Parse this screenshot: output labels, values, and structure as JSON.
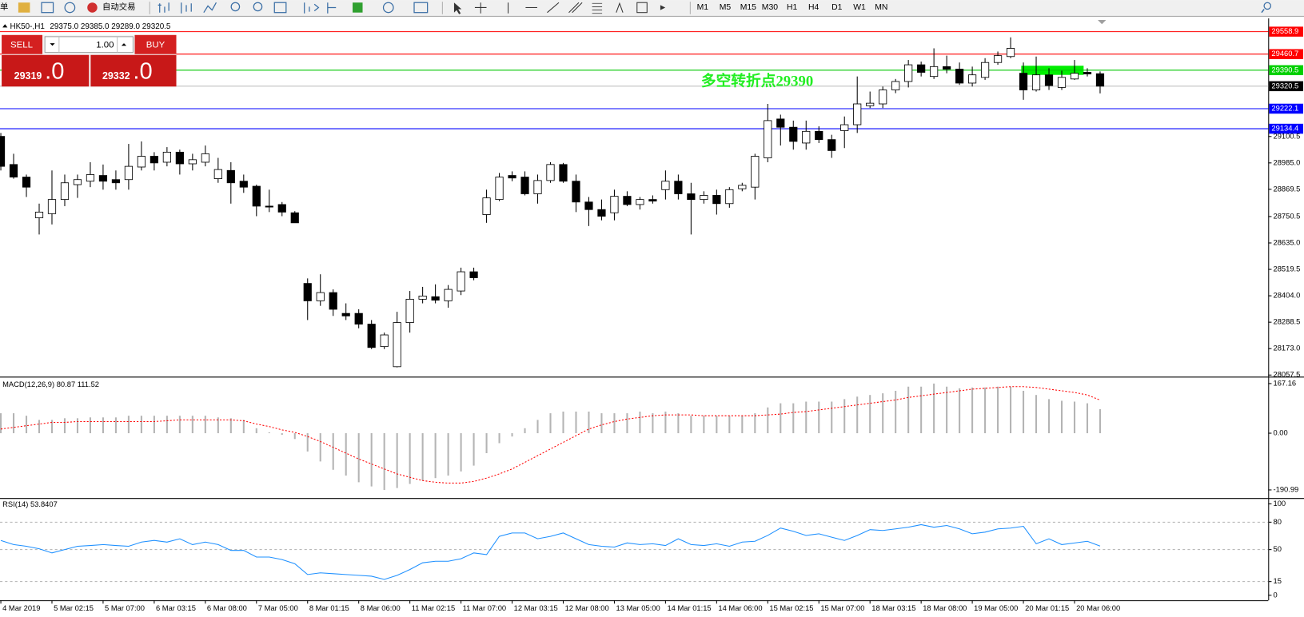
{
  "toolbar": {
    "menu": "单",
    "autotrade": "自动交易",
    "timeframes": [
      "M1",
      "M5",
      "M15",
      "M30",
      "H1",
      "H4",
      "D1",
      "W1",
      "MN"
    ]
  },
  "trade_panel": {
    "sell": "SELL",
    "buy": "BUY",
    "lots": "1.00",
    "bid": "29319",
    "bid_fraction": ".0",
    "ask": "29332",
    "ask_fraction": ".0"
  },
  "chart_data": [
    {
      "type": "candlestick",
      "title": "HK50-,H1",
      "subtitle": "29375.0 29385.0 29289.0 29320.5",
      "categories": [
        "4 Mar 2019",
        null,
        null,
        null,
        "5 Mar 02:15",
        null,
        null,
        null,
        "5 Mar 07:00",
        null,
        null,
        null,
        "6 Mar 03:15",
        null,
        null,
        null,
        "6 Mar 08:00",
        null,
        null,
        null,
        "7 Mar 05:00",
        null,
        null,
        null,
        "8 Mar 01:15",
        null,
        null,
        null,
        "8 Mar 06:00",
        null,
        null,
        null,
        "11 Mar 02:15",
        null,
        null,
        null,
        "11 Mar 07:00",
        null,
        null,
        null,
        "12 Mar 03:15",
        null,
        null,
        null,
        "12 Mar 08:00",
        null,
        null,
        null,
        "13 Mar 05:00",
        null,
        null,
        null,
        "14 Mar 01:15",
        null,
        null,
        null,
        "14 Mar 06:00",
        null,
        null,
        null,
        "15 Mar 02:15",
        null,
        null,
        null,
        "15 Mar 07:00",
        null,
        null,
        null,
        "18 Mar 03:15",
        null,
        null,
        null,
        "18 Mar 08:00",
        null,
        null,
        null,
        "19 Mar 05:00",
        null,
        null,
        null,
        "20 Mar 01:15",
        null,
        null,
        null,
        "20 Mar 06:00",
        null,
        null
      ],
      "open": [
        29101,
        28978,
        28923,
        28745,
        28763,
        28825,
        28890,
        28905,
        28930,
        28912,
        28912,
        28967,
        29014,
        28988,
        29032,
        28981,
        28988,
        28916,
        28952,
        28905,
        28883,
        28796,
        28803,
        28767,
        28458,
        28382,
        28418,
        28327,
        28327,
        28280,
        28182,
        28094,
        28287,
        28389,
        28400,
        28382,
        28425,
        28509,
        28759,
        28825,
        28930,
        28923,
        28850,
        28908,
        28978,
        28905,
        28814,
        28781,
        28767,
        28839,
        28803,
        28825,
        28868,
        28905,
        28850,
        28825,
        28843,
        28807,
        28872,
        28879,
        29007,
        29177,
        29141,
        29072,
        29123,
        29087,
        29126,
        29152,
        29235,
        29243,
        29304,
        29341,
        29414,
        29363,
        29406,
        29395,
        29334,
        29359,
        29424,
        29450,
        29377,
        29304,
        29370,
        29315,
        29352,
        29381,
        29375
      ],
      "high": [
        29116,
        29025,
        28934,
        28807,
        28952,
        28934,
        28934,
        28988,
        28978,
        28952,
        29068,
        29079,
        29032,
        29054,
        29043,
        29025,
        29061,
        29007,
        28988,
        28934,
        28890,
        28868,
        28814,
        28774,
        28480,
        28498,
        28432,
        28371,
        28345,
        28298,
        28243,
        28334,
        28425,
        28443,
        28454,
        28451,
        28527,
        28527,
        28868,
        28941,
        28948,
        28948,
        28934,
        28988,
        28985,
        28934,
        28836,
        28825,
        28868,
        28861,
        28836,
        28843,
        28952,
        28934,
        28898,
        28861,
        28868,
        28879,
        28898,
        29025,
        29243,
        29196,
        29170,
        29170,
        29145,
        29108,
        29188,
        29363,
        29297,
        29319,
        29352,
        29435,
        29428,
        29486,
        29454,
        29424,
        29406,
        29443,
        29472,
        29534,
        29424,
        29450,
        29399,
        29388,
        29435,
        29399,
        29385
      ],
      "low": [
        28952,
        28916,
        28836,
        28672,
        28716,
        28796,
        28832,
        28879,
        28868,
        28868,
        28868,
        28952,
        28952,
        28970,
        28934,
        28952,
        28970,
        28898,
        28807,
        28854,
        28752,
        28770,
        28752,
        28723,
        28298,
        28360,
        28316,
        28298,
        28262,
        28171,
        28171,
        28091,
        28243,
        28371,
        28371,
        28352,
        28407,
        28472,
        28723,
        28818,
        28905,
        28843,
        28807,
        28898,
        28898,
        28770,
        28709,
        28734,
        28734,
        28796,
        28781,
        28807,
        28825,
        28825,
        28672,
        28807,
        28759,
        28789,
        28861,
        28825,
        28988,
        29061,
        29043,
        29043,
        29072,
        29007,
        29050,
        29116,
        29225,
        29225,
        29290,
        29315,
        29363,
        29352,
        29377,
        29326,
        29319,
        29348,
        29414,
        29443,
        29261,
        29297,
        29304,
        29304,
        29348,
        29363,
        29289
      ],
      "close": [
        28970,
        28923,
        28879,
        28770,
        28825,
        28898,
        28912,
        28934,
        28905,
        28898,
        28970,
        29014,
        28985,
        29032,
        28981,
        28999,
        29025,
        28956,
        28898,
        28879,
        28796,
        28792,
        28770,
        28723,
        28382,
        28418,
        28345,
        28316,
        28280,
        28178,
        28233,
        28287,
        28389,
        28403,
        28385,
        28432,
        28509,
        28483,
        28832,
        28923,
        28919,
        28850,
        28908,
        28978,
        28905,
        28814,
        28781,
        28752,
        28839,
        28803,
        28825,
        28818,
        28905,
        28850,
        28825,
        28843,
        28807,
        28868,
        28887,
        29014,
        29170,
        29141,
        29079,
        29123,
        29087,
        29039,
        29152,
        29243,
        29246,
        29304,
        29341,
        29414,
        29381,
        29406,
        29395,
        29334,
        29370,
        29424,
        29454,
        29486,
        29304,
        29370,
        29323,
        29359,
        29377,
        29374,
        29320.5
      ],
      "up_color": "#ffffff",
      "down_color": "#000000",
      "ylim": [
        28054,
        29617
      ],
      "yticks": [
        28057.5,
        {
          "value": 28173,
          "label": "28173.0"
        },
        28288.5,
        {
          "value": 28404,
          "label": "28404.0"
        },
        28519.5,
        {
          "value": 28635,
          "label": "28635.0"
        },
        28750.5,
        28869.5,
        {
          "value": 28985,
          "label": "28985.0"
        },
        29100.5
      ],
      "levels": [
        {
          "value": 29558.9,
          "color": "#ff0000",
          "label_color": "#ff0000"
        },
        {
          "value": 29460.7,
          "color": "#ff0000",
          "label_color": "#ff0000"
        },
        {
          "value": 29390.5,
          "color": "#00c800",
          "label_color": "#00d000"
        },
        {
          "value": 29320.5,
          "color": "#c0c0c0",
          "label_color": "#000000"
        },
        {
          "value": 29222.1,
          "color": "#0000ff",
          "label_color": "#0000ff"
        },
        {
          "value": 29134.4,
          "color": "#0000ff",
          "label_color": "#0000ff"
        }
      ],
      "annotation": {
        "text": "多空转折点29390",
        "color": "#22ee22"
      }
    },
    {
      "type": "macd",
      "title": "MACD(12,26,9) 80.87 111.52",
      "color": "#b4b4b4",
      "signal_color": "#ff0000",
      "values": [
        67.2,
        67.2,
        58.8,
        44.8,
        44.8,
        50.4,
        50.4,
        53.2,
        53.2,
        53.2,
        58.8,
        58.8,
        58.8,
        58.8,
        58.8,
        58.8,
        58.8,
        53.2,
        50.4,
        44.8,
        16.8,
        2.8,
        -5.6,
        -19.6,
        -61.6,
        -95.2,
        -123.2,
        -142.8,
        -165.2,
        -179.2,
        -190.99,
        -184.8,
        -170.8,
        -159.6,
        -151.2,
        -142.8,
        -128.8,
        -109.2,
        -67.2,
        -33.6,
        -11.2,
        16.8,
        44.8,
        67.2,
        72.8,
        72.8,
        72.8,
        67.2,
        67.2,
        67.2,
        72.8,
        67.2,
        72.8,
        67.2,
        58.8,
        58.8,
        58.8,
        58.8,
        58.8,
        67.2,
        86.8,
        100.8,
        100.8,
        106.4,
        106.4,
        106.4,
        114.8,
        123.2,
        128.8,
        134.4,
        142.8,
        156.8,
        156.8,
        167.16,
        156.8,
        151.2,
        154,
        154,
        156.8,
        156.8,
        142.8,
        128.8,
        114.8,
        109.2,
        106.4,
        100.8,
        80.87
      ],
      "signal": [
        14,
        19.6,
        25.2,
        30.8,
        36.4,
        36.4,
        39.2,
        39.2,
        39.2,
        39.2,
        39.2,
        39.2,
        39.2,
        42,
        44.8,
        44.8,
        44.8,
        44.8,
        44.8,
        42,
        30.8,
        22.4,
        11.2,
        2.8,
        -11.2,
        -28,
        -47.6,
        -67.2,
        -86.8,
        -103.6,
        -120.4,
        -137.2,
        -148.4,
        -159.6,
        -165.2,
        -168,
        -168,
        -162.4,
        -151.2,
        -137.2,
        -120.4,
        -98,
        -75.6,
        -53.2,
        -30.8,
        -8.4,
        14,
        28,
        39.2,
        47.6,
        53.2,
        58.8,
        61.6,
        61.6,
        61.6,
        58.8,
        58.8,
        58.8,
        58.8,
        58.8,
        61.6,
        64.4,
        70,
        72.8,
        78.4,
        84,
        89.6,
        95.2,
        100.8,
        106.4,
        112,
        120.4,
        126,
        131.6,
        137.2,
        142.8,
        148.4,
        151.2,
        154,
        156.8,
        156.8,
        154,
        148.4,
        142.8,
        137.2,
        128.8,
        111.52
      ],
      "ylim": [
        -215.6,
        184.8
      ],
      "yticks": [
        167.16,
        {
          "value": 0,
          "label": "0.00"
        },
        -190.99
      ]
    },
    {
      "type": "line",
      "title": "RSI(14) 53.8407",
      "color": "#1e90ff",
      "values": [
        60,
        55.5,
        53.6,
        50.9,
        46.4,
        50,
        53.6,
        54.5,
        55.5,
        54.5,
        53.6,
        58.2,
        60,
        58.2,
        61.8,
        55.5,
        58.2,
        55.5,
        49.1,
        49.1,
        41.8,
        41.8,
        39.1,
        34.5,
        22.7,
        24.5,
        23.6,
        22.7,
        21.8,
        20.9,
        17.3,
        21.8,
        28.2,
        35.5,
        37.3,
        37.3,
        40,
        46.4,
        44.5,
        64.5,
        68.2,
        68.2,
        61.8,
        64.5,
        68.2,
        61.8,
        55.5,
        53.6,
        52.7,
        57.3,
        55.5,
        56.4,
        54.5,
        61.8,
        55.5,
        54.5,
        56.4,
        53.6,
        58.2,
        59.1,
        65.5,
        73.6,
        70,
        65.5,
        67.3,
        63.6,
        60,
        65.5,
        71.8,
        70.9,
        72.7,
        74.5,
        77.3,
        74.5,
        76.4,
        72.7,
        67.3,
        69.1,
        72.7,
        73.6,
        75.5,
        56.4,
        61.8,
        55.5,
        57.3,
        59.1,
        53.8407
      ],
      "ylim": [
        -5.5,
        105.5
      ],
      "yticks": [
        0,
        15,
        50,
        80,
        100
      ],
      "levels": [
        15,
        50,
        80
      ]
    }
  ]
}
